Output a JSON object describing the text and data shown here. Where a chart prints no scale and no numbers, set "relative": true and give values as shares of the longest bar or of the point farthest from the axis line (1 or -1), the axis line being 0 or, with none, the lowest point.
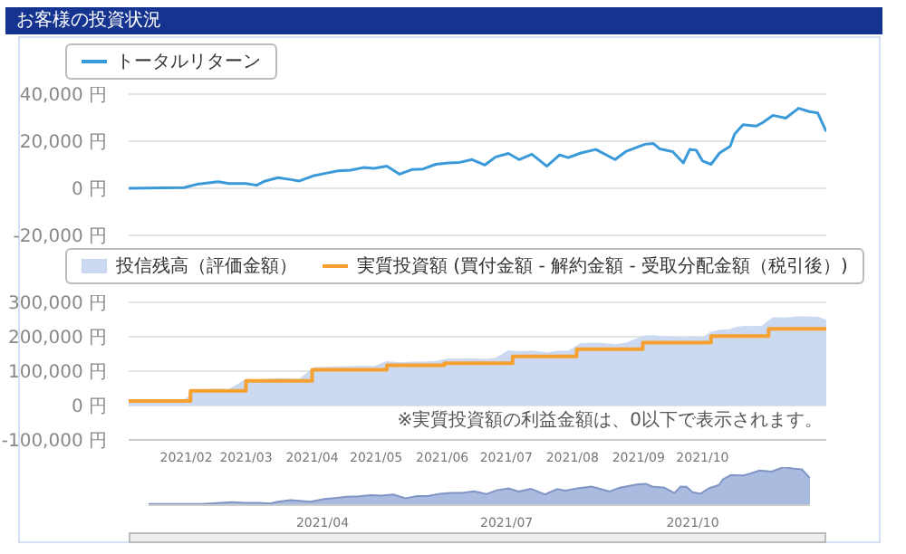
{
  "chart_data": [
    {
      "type": "line",
      "title": "お客様の投資状況",
      "x": [
        "2021-01-05",
        "2021-01-31",
        "2021-02-06",
        "2021-02-16",
        "2021-02-21",
        "2021-03-01",
        "2021-03-06",
        "2021-03-10",
        "2021-03-16",
        "2021-03-22",
        "2021-03-26",
        "2021-04-02",
        "2021-04-08",
        "2021-04-13",
        "2021-04-19",
        "2021-04-25",
        "2021-04-30",
        "2021-05-06",
        "2021-05-12",
        "2021-05-18",
        "2021-05-23",
        "2021-05-29",
        "2021-06-04",
        "2021-06-09",
        "2021-06-15",
        "2021-06-21",
        "2021-06-26",
        "2021-07-02",
        "2021-07-07",
        "2021-07-13",
        "2021-07-20",
        "2021-07-26",
        "2021-07-30",
        "2021-08-05",
        "2021-08-12",
        "2021-08-21",
        "2021-08-26",
        "2021-09-04",
        "2021-09-08",
        "2021-09-11",
        "2021-09-17",
        "2021-09-22",
        "2021-09-25",
        "2021-09-28",
        "2021-10-01",
        "2021-10-05",
        "2021-10-09",
        "2021-10-14",
        "2021-10-16",
        "2021-10-20",
        "2021-10-26",
        "2021-10-29",
        "2021-11-03",
        "2021-11-09",
        "2021-11-15",
        "2021-11-20",
        "2021-11-24",
        "2021-11-28"
      ],
      "series": [
        {
          "name": "トータルリターン",
          "color": "#3a9ad9",
          "values": [
            0,
            300,
            1700,
            2800,
            2000,
            2000,
            1300,
            3100,
            4500,
            3700,
            3100,
            5400,
            6500,
            7400,
            7700,
            8800,
            8500,
            9400,
            6000,
            8000,
            8200,
            10200,
            10800,
            11000,
            12200,
            9900,
            13300,
            14800,
            12200,
            14500,
            9400,
            14200,
            13000,
            15000,
            16500,
            12200,
            15600,
            18700,
            19000,
            16700,
            15600,
            10800,
            16500,
            16200,
            11600,
            10200,
            15000,
            17900,
            23000,
            27000,
            26400,
            27800,
            31000,
            29800,
            34000,
            32600,
            32000,
            24100
          ]
        }
      ],
      "xlim": [
        "2021-01-05",
        "2021-11-28"
      ],
      "ylim": [
        -20000,
        40000
      ],
      "yticks": [
        {
          "value": -20000,
          "label": "-20,000 円"
        },
        {
          "value": 0,
          "label": "0 円"
        },
        {
          "value": 20000,
          "label": "20,000 円"
        },
        {
          "value": 40000,
          "label": "40,000 円"
        }
      ],
      "tick_labels": "y",
      "grid": "y",
      "legend": "top left"
    },
    {
      "type": "area",
      "x": [
        "2021-01-05",
        "2021-01-31",
        "2021-02-06",
        "2021-02-16",
        "2021-02-21",
        "2021-03-01",
        "2021-03-06",
        "2021-03-10",
        "2021-03-16",
        "2021-03-22",
        "2021-03-26",
        "2021-04-02",
        "2021-04-08",
        "2021-04-13",
        "2021-04-19",
        "2021-04-25",
        "2021-04-30",
        "2021-05-06",
        "2021-05-12",
        "2021-05-18",
        "2021-05-23",
        "2021-05-29",
        "2021-06-04",
        "2021-06-09",
        "2021-06-15",
        "2021-06-21",
        "2021-06-26",
        "2021-07-02",
        "2021-07-07",
        "2021-07-13",
        "2021-07-20",
        "2021-07-26",
        "2021-07-30",
        "2021-08-05",
        "2021-08-12",
        "2021-08-21",
        "2021-08-26",
        "2021-09-04",
        "2021-09-08",
        "2021-09-11",
        "2021-09-17",
        "2021-09-22",
        "2021-09-25",
        "2021-09-28",
        "2021-10-01",
        "2021-10-05",
        "2021-10-09",
        "2021-10-14",
        "2021-10-16",
        "2021-10-20",
        "2021-10-26",
        "2021-10-29",
        "2021-11-03",
        "2021-11-09",
        "2021-11-15",
        "2021-11-20",
        "2021-11-24",
        "2021-11-28"
      ],
      "series": [
        {
          "name": "投信残高（評価金額）",
          "color": "#ccdaf1",
          "values": [
            13000,
            13000,
            45000,
            46000,
            45000,
            74000,
            73000,
            75000,
            77000,
            76000,
            75000,
            109000,
            110000,
            111000,
            112000,
            113000,
            112000,
            126000,
            123000,
            125000,
            125000,
            127000,
            134000,
            134000,
            135000,
            133000,
            136000,
            158000,
            155000,
            157000,
            152000,
            157000,
            156000,
            179000,
            180000,
            176000,
            180000,
            202000,
            202000,
            200000,
            199000,
            194000,
            199000,
            199000,
            195000,
            212000,
            217000,
            220000,
            225000,
            229000,
            228000,
            230000,
            254000,
            253000,
            257000,
            256000,
            255000,
            247000
          ]
        },
        {
          "name": "実質投資額 (買付金額 - 解約金額 - 受取分配金額（税引後）)",
          "type": "step",
          "color": "#f5a030",
          "x": [
            "2021-01-05",
            "2021-02-03",
            "2021-03-01",
            "2021-04-01",
            "2021-05-06",
            "2021-06-02",
            "2021-07-04",
            "2021-08-03",
            "2021-09-03",
            "2021-10-05",
            "2021-11-01",
            "2021-11-28"
          ],
          "values": [
            13000,
            43000,
            72000,
            104000,
            117000,
            123000,
            143000,
            164000,
            183000,
            202000,
            223000,
            223000
          ]
        }
      ],
      "xlim": [
        "2021-01-05",
        "2021-11-28"
      ],
      "ylim": [
        -100000,
        300000
      ],
      "yticks": [
        {
          "value": -100000,
          "label": "-100,000 円"
        },
        {
          "value": 0,
          "label": "0 円"
        },
        {
          "value": 100000,
          "label": "100,000 円"
        },
        {
          "value": 200000,
          "label": "200,000 円"
        },
        {
          "value": 300000,
          "label": "300,000 円"
        }
      ],
      "xticks": [
        {
          "value": "2021-02-01",
          "label": "2021/02"
        },
        {
          "value": "2021-03-01",
          "label": "2021/03"
        },
        {
          "value": "2021-04-01",
          "label": "2021/04"
        },
        {
          "value": "2021-05-01",
          "label": "2021/05"
        },
        {
          "value": "2021-06-01",
          "label": "2021/06"
        },
        {
          "value": "2021-07-01",
          "label": "2021/07"
        },
        {
          "value": "2021-08-01",
          "label": "2021/08"
        },
        {
          "value": "2021-09-01",
          "label": "2021/09"
        },
        {
          "value": "2021-10-01",
          "label": "2021/10"
        }
      ],
      "grid": "y",
      "legend": "top left",
      "annotations": [
        "※実質投資額の利益金額は、0以下で表示されます。"
      ]
    },
    {
      "type": "area",
      "relative": true,
      "color": "#a9bbdf",
      "x": [
        "2021-01-05",
        "2021-01-31",
        "2021-02-06",
        "2021-02-16",
        "2021-02-21",
        "2021-03-01",
        "2021-03-06",
        "2021-03-10",
        "2021-03-16",
        "2021-03-22",
        "2021-03-26",
        "2021-04-02",
        "2021-04-08",
        "2021-04-13",
        "2021-04-19",
        "2021-04-25",
        "2021-04-30",
        "2021-05-06",
        "2021-05-12",
        "2021-05-18",
        "2021-05-23",
        "2021-05-29",
        "2021-06-04",
        "2021-06-09",
        "2021-06-15",
        "2021-06-21",
        "2021-06-26",
        "2021-07-02",
        "2021-07-07",
        "2021-07-13",
        "2021-07-20",
        "2021-07-26",
        "2021-07-30",
        "2021-08-05",
        "2021-08-12",
        "2021-08-21",
        "2021-08-26",
        "2021-09-04",
        "2021-09-08",
        "2021-09-11",
        "2021-09-17",
        "2021-09-22",
        "2021-09-25",
        "2021-09-28",
        "2021-10-01",
        "2021-10-05",
        "2021-10-09",
        "2021-10-14",
        "2021-10-16",
        "2021-10-20",
        "2021-10-26",
        "2021-10-29",
        "2021-11-03",
        "2021-11-09",
        "2021-11-15",
        "2021-11-20",
        "2021-11-24",
        "2021-11-28"
      ],
      "values": [
        0.03,
        0.03,
        0.05,
        0.08,
        0.06,
        0.06,
        0.04,
        0.09,
        0.13,
        0.11,
        0.09,
        0.16,
        0.19,
        0.22,
        0.23,
        0.26,
        0.25,
        0.28,
        0.18,
        0.24,
        0.24,
        0.3,
        0.32,
        0.32,
        0.36,
        0.29,
        0.39,
        0.44,
        0.36,
        0.43,
        0.28,
        0.42,
        0.38,
        0.44,
        0.49,
        0.36,
        0.46,
        0.55,
        0.56,
        0.49,
        0.46,
        0.32,
        0.49,
        0.48,
        0.34,
        0.3,
        0.44,
        0.53,
        0.68,
        0.79,
        0.78,
        0.82,
        0.91,
        0.88,
        1,
        0.96,
        0.94,
        0.71
      ],
      "xlim": [
        "2021-01-05",
        "2021-11-28"
      ],
      "xticks": [
        {
          "value": "2021-04-01",
          "label": "2021/04"
        },
        {
          "value": "2021-07-01",
          "label": "2021/07"
        },
        {
          "value": "2021-10-01",
          "label": "2021/10"
        }
      ],
      "tick_labels": "x"
    }
  ]
}
